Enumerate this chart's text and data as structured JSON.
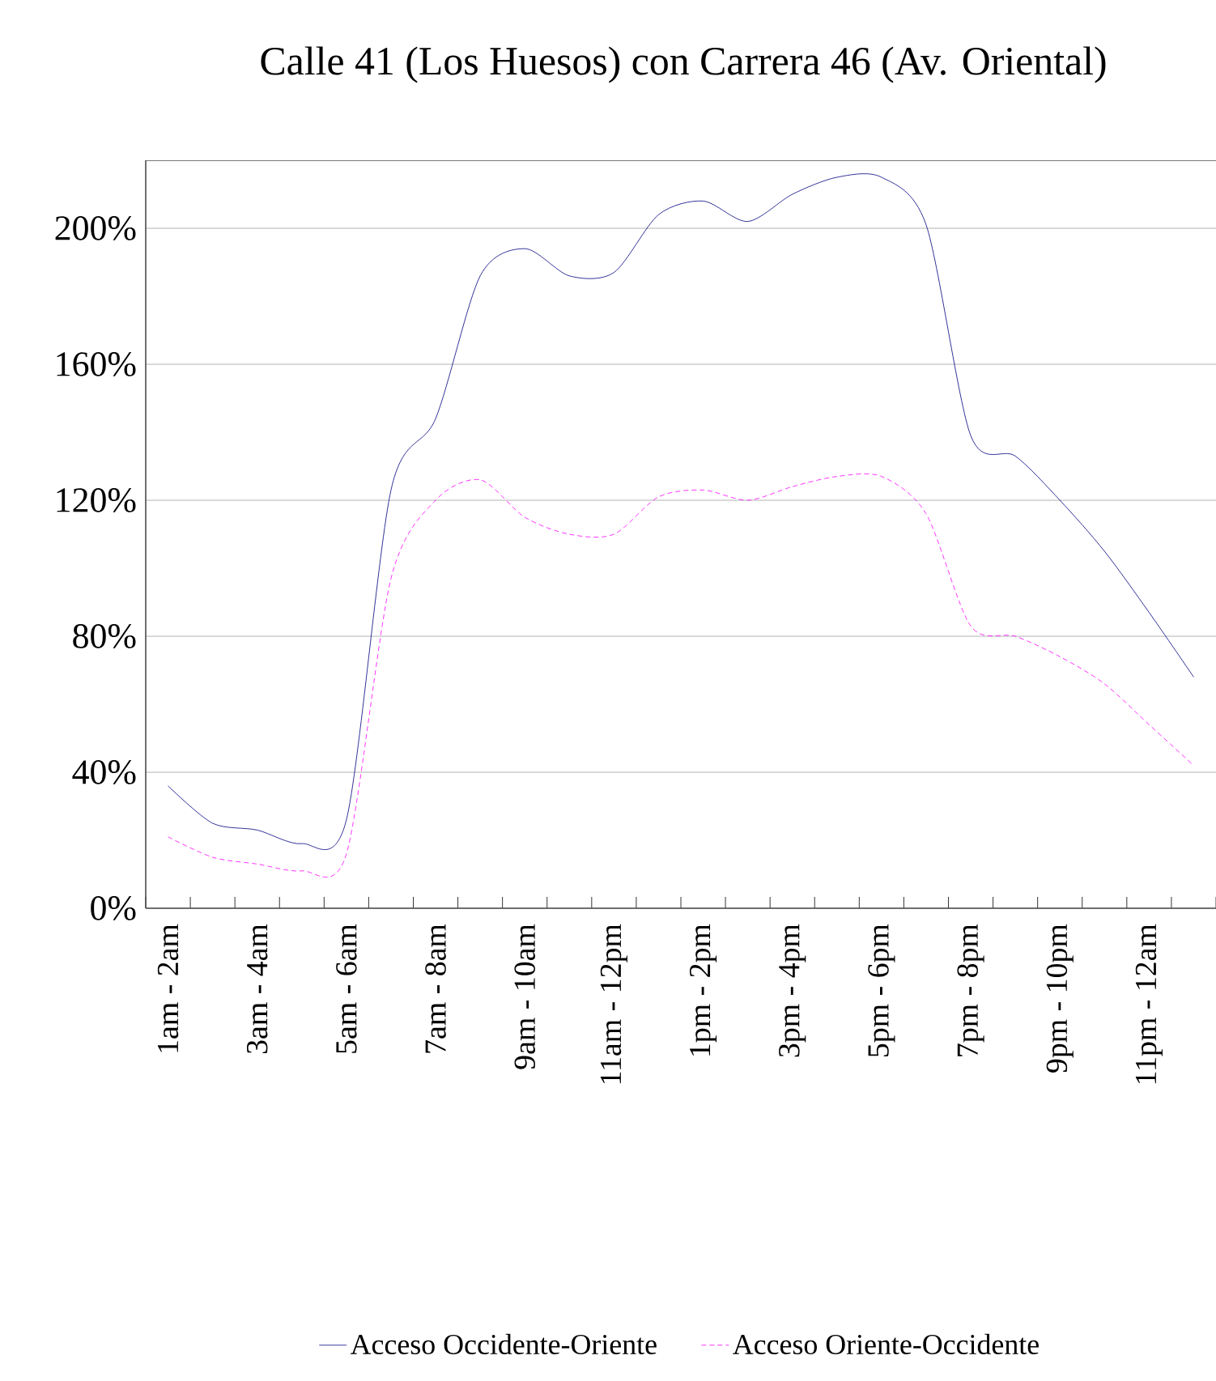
{
  "chart_data": {
    "type": "line",
    "title": "Calle 41 (Los Huesos) con Carrera 46 (Av. Oriental)",
    "categories": [
      "1am - 2am",
      null,
      "3am - 4am",
      null,
      "5am - 6am",
      null,
      "7am - 8am",
      null,
      "9am - 10am",
      null,
      "11am - 12pm",
      null,
      "1pm - 2pm",
      null,
      "3pm - 4pm",
      null,
      "5pm - 6pm",
      null,
      "7pm - 8pm",
      null,
      "9pm - 10pm",
      null,
      "11pm - 12am",
      null
    ],
    "series": [
      {
        "name": "Acceso Occidente-Oriente",
        "color": "#000080",
        "line_style": "solid",
        "values": [
          36,
          25,
          23,
          19,
          26,
          123,
          144,
          186,
          194,
          186,
          187,
          204,
          208,
          202,
          210,
          215,
          215,
          201,
          139,
          133,
          120,
          105,
          87,
          68
        ]
      },
      {
        "name": "Acceso Oriente-Occidente",
        "color": "#ff00ff",
        "line_style": "dashed",
        "values": [
          21,
          15,
          13,
          11,
          16,
          97,
          120,
          126,
          115,
          110,
          110,
          121,
          123,
          120,
          124,
          127,
          127,
          116,
          83,
          80,
          74,
          66,
          54,
          42
        ]
      }
    ],
    "ylim": [
      0,
      220
    ],
    "yticks": [
      {
        "value": 0,
        "label": "0%"
      },
      {
        "value": 40,
        "label": "40%"
      },
      {
        "value": 80,
        "label": "80%"
      },
      {
        "value": 120,
        "label": "120%"
      },
      {
        "value": 160,
        "label": "160%"
      },
      {
        "value": 200,
        "label": "200%"
      }
    ],
    "grid": "y",
    "legend": "bottom",
    "marker": "none"
  }
}
